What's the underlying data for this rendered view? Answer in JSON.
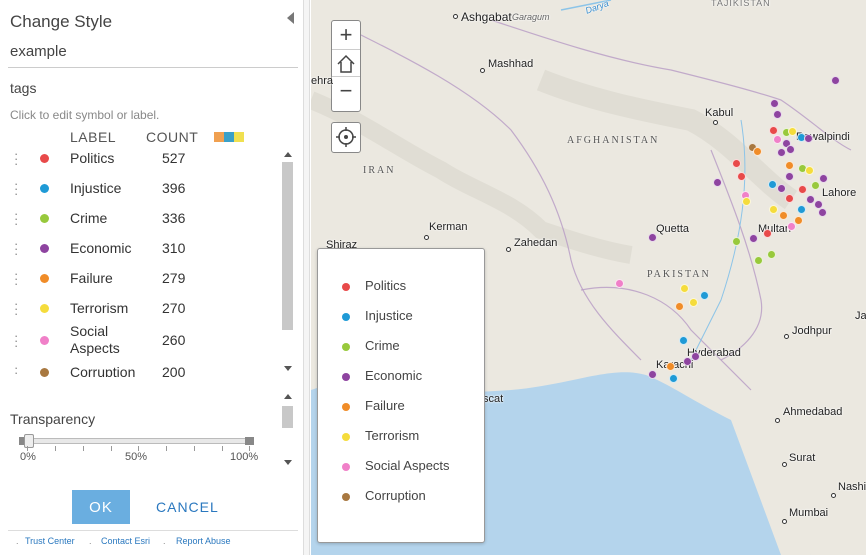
{
  "panel": {
    "title": "Change Style",
    "layer_name": "example",
    "attribute": "tags",
    "hint": "Click to edit symbol or label.",
    "header_label": "LABEL",
    "header_count": "COUNT",
    "ramp_colors": [
      "#f0a050",
      "#3aa0c8",
      "#f0e050"
    ],
    "categories": [
      {
        "label": "Politics",
        "count": "527",
        "color": "#e84a4a"
      },
      {
        "label": "Injustice",
        "count": "396",
        "color": "#1f9ad6"
      },
      {
        "label": "Crime",
        "count": "336",
        "color": "#98c93c"
      },
      {
        "label": "Economic",
        "count": "310",
        "color": "#8e44a0"
      },
      {
        "label": "Failure",
        "count": "279",
        "color": "#f08c28"
      },
      {
        "label": "Terrorism",
        "count": "270",
        "color": "#f5dc3c"
      },
      {
        "label": "Social Aspects",
        "count": "260",
        "color": "#f080c8"
      },
      {
        "label": "Corruption",
        "count": "200",
        "color": "#a87840"
      }
    ],
    "transparency_label": "Transparency",
    "transparency_value": 0,
    "tick_labels": [
      "0%",
      "50%",
      "100%"
    ],
    "ok_label": "OK",
    "cancel_label": "CANCEL",
    "footer_links": [
      "Trust Center",
      "Contact Esri",
      "Report Abuse"
    ]
  },
  "map": {
    "zoom_in": "+",
    "zoom_out": "−",
    "places": [
      {
        "name": "Ashgabat"
      },
      {
        "name": "Garagum"
      },
      {
        "name": "Mashhad"
      },
      {
        "name": "Kabul"
      },
      {
        "name": "Rawalpindi"
      },
      {
        "name": "Lahore"
      },
      {
        "name": "Multan"
      },
      {
        "name": "Quetta"
      },
      {
        "name": "Kerman"
      },
      {
        "name": "Zahedan"
      },
      {
        "name": "Shiraz"
      },
      {
        "name": "Hyderabad"
      },
      {
        "name": "Karachi"
      },
      {
        "name": "Jodhpur"
      },
      {
        "name": "Ahmedabad"
      },
      {
        "name": "Surat"
      },
      {
        "name": "Nashik"
      },
      {
        "name": "Mumbai"
      },
      {
        "name": "Tehran"
      },
      {
        "name": "Muscat"
      },
      {
        "name": "Amu Darya"
      },
      {
        "name": "TAJIKISTAN"
      },
      {
        "name": "Jaipur"
      }
    ],
    "countries": [
      "AFGHANISTAN",
      "IRAN",
      "PAKISTAN"
    ]
  }
}
